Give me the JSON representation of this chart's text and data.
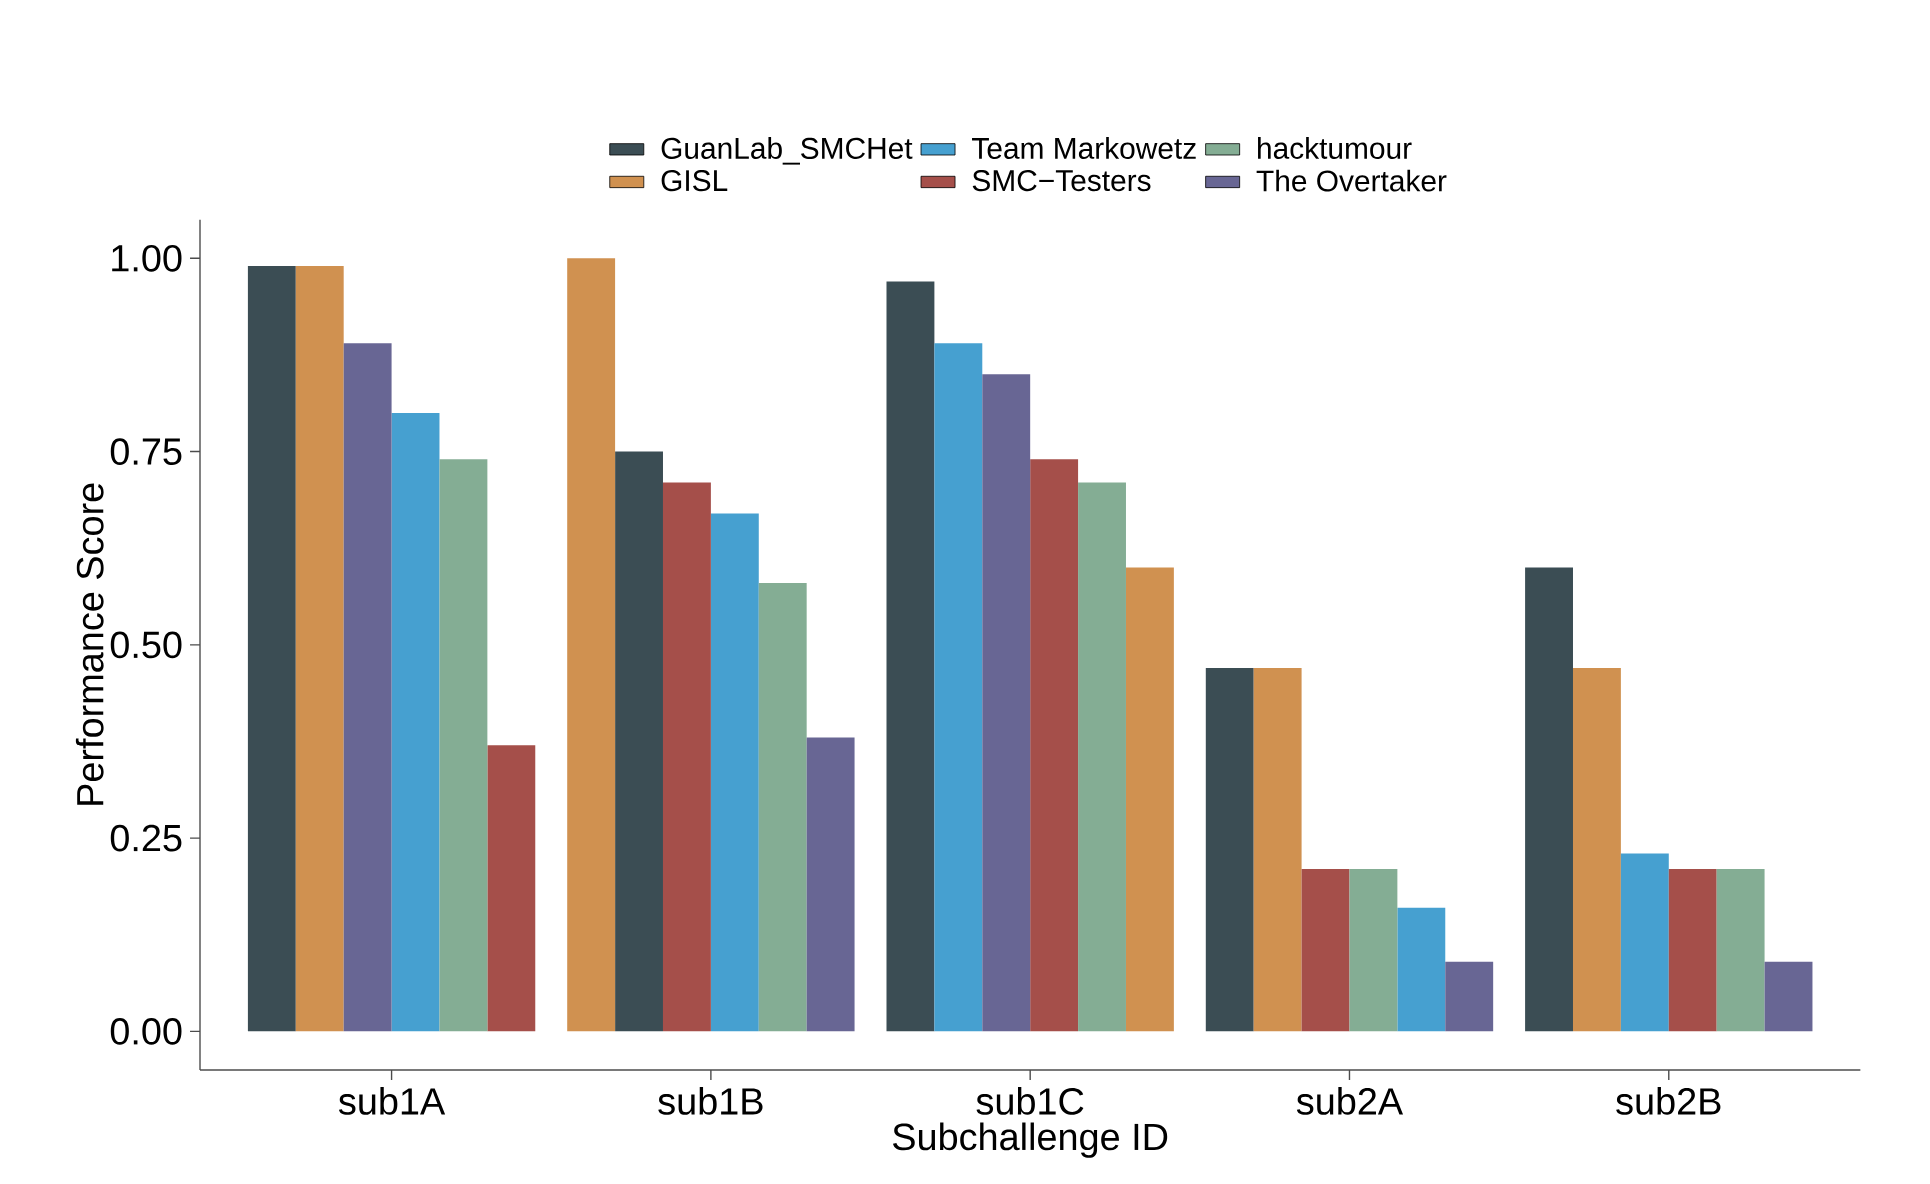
{
  "chart_data": {
    "type": "bar",
    "xlabel": "Subchallenge ID",
    "ylabel": "Performance Score",
    "categories": [
      "sub1A",
      "sub1B",
      "sub1C",
      "sub2A",
      "sub2B"
    ],
    "series": [
      {
        "name": "GuanLab_SMCHet",
        "color": "#3b4d54",
        "values": [
          0.99,
          0.75,
          0.97,
          0.47,
          0.6
        ]
      },
      {
        "name": "GISL",
        "color": "#d09150",
        "values": [
          0.99,
          1.0,
          0.6,
          0.47,
          0.47
        ]
      },
      {
        "name": "Team Markowetz",
        "color": "#46a0d0",
        "values": [
          0.8,
          0.67,
          0.89,
          0.16,
          0.23
        ]
      },
      {
        "name": "SMC−Testers",
        "color": "#a54f4a",
        "values": [
          0.37,
          0.71,
          0.74,
          0.21,
          0.21
        ]
      },
      {
        "name": "hacktumour",
        "color": "#84ad94",
        "values": [
          0.74,
          0.58,
          0.71,
          0.21,
          0.21
        ]
      },
      {
        "name": "The Overtaker",
        "color": "#686694",
        "values": [
          0.89,
          0.38,
          0.85,
          0.09,
          0.09
        ]
      }
    ],
    "ylim": [
      -0.05,
      1.05
    ],
    "yticks": [
      {
        "value": 0,
        "label": "0.00"
      },
      {
        "value": 0.25,
        "label": "0.25"
      },
      {
        "value": 0.5,
        "label": "0.50"
      },
      {
        "value": 0.75,
        "label": "0.75"
      },
      {
        "value": 1,
        "label": "1.00"
      }
    ],
    "legend": "top",
    "grid": false
  }
}
